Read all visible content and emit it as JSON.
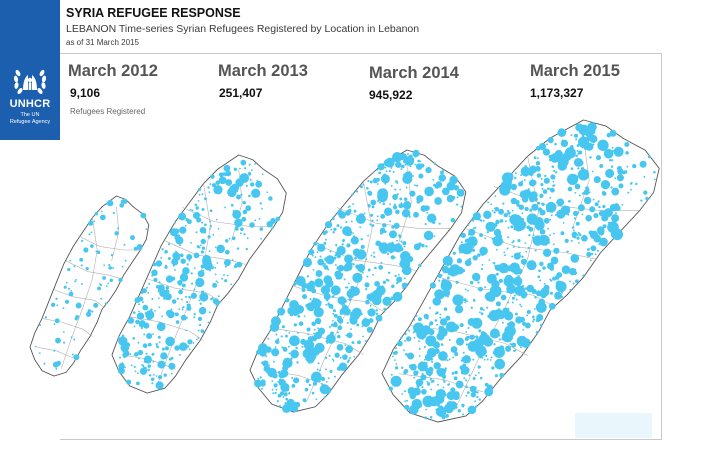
{
  "brand": {
    "name": "UNHCR",
    "tagline_lines": [
      "The UN",
      "Refugee Agency"
    ],
    "color": "#1b5fae"
  },
  "header": {
    "title": "SYRIA REFUGEE RESPONSE",
    "subtitle": "LEBANON Time-series Syrian Refugees Registered by Location in Lebanon",
    "as_of": "as of 31 March 2015"
  },
  "legend_note": "Refugees Registered",
  "periods": [
    {
      "label": "March 2012",
      "count": "9,106"
    },
    {
      "label": "March 2013",
      "count": "251,407"
    },
    {
      "label": "March 2014",
      "count": "945,922"
    },
    {
      "label": "March 2015",
      "count": "1,173,327"
    }
  ],
  "colors": {
    "dot": "#47c6f0",
    "map_fill": "#ffffff",
    "map_border": "#555555",
    "district_line": "#b0b0b0"
  }
}
